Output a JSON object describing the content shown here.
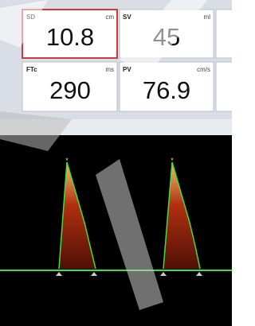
{
  "tiles": [
    {
      "label": "SD",
      "unit": "cm",
      "value": "10.8"
    },
    {
      "label": "SV",
      "unit": "ml",
      "value": "45"
    },
    {
      "label": "FTc",
      "unit": "ms",
      "value": "290"
    },
    {
      "label": "PV",
      "unit": "cm/s",
      "value": "76.9"
    }
  ]
}
